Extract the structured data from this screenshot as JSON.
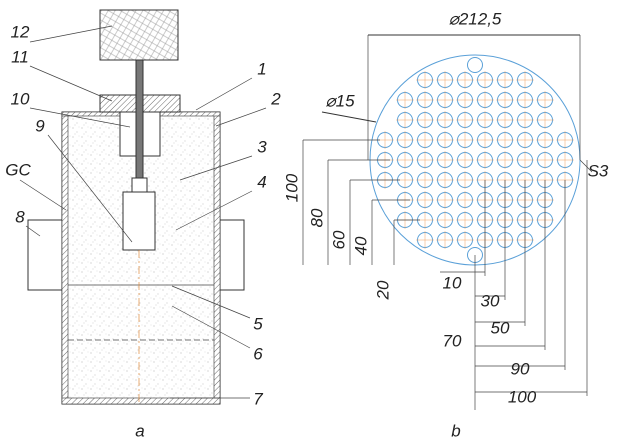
{
  "left": {
    "labels": [
      "12",
      "11",
      "10",
      "9",
      "GC",
      "8",
      "1",
      "2",
      "3",
      "4",
      "5",
      "6",
      "7"
    ]
  },
  "right": {
    "diameter": "⌀212,5",
    "hole": "⌀15",
    "section": "S3",
    "vertical_dims": [
      "100",
      "80",
      "60",
      "40",
      "20"
    ],
    "horizontal_dims": [
      "10",
      "30",
      "50",
      "70",
      "90",
      "100"
    ]
  },
  "captions": [
    "a",
    "b"
  ]
}
